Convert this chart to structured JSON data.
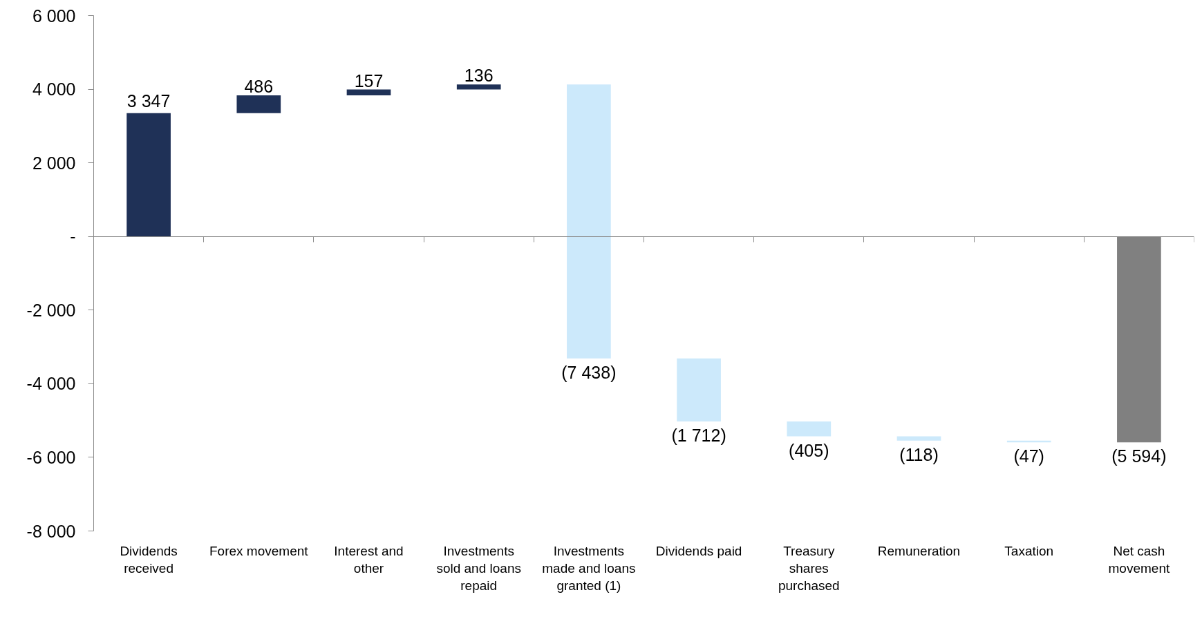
{
  "chart_data": {
    "type": "bar",
    "categories": [
      "Dividends received",
      "Forex movement",
      "Interest and other",
      "Investments sold and loans repaid",
      "Investments made and loans granted (1)",
      "Dividends paid",
      "Treasury shares purchased",
      "Remuneration",
      "Taxation",
      "Net cash movement"
    ],
    "values": [
      3347,
      486,
      157,
      136,
      -7438,
      -1712,
      -405,
      -118,
      -47,
      -5594
    ],
    "base": [
      0,
      3347,
      3833,
      3990,
      4126,
      -3312,
      -5024,
      -5429,
      -5547,
      0
    ],
    "colors": [
      "#1f3157",
      "#1f3157",
      "#1f3157",
      "#1f3157",
      "#cce9fb",
      "#cce9fb",
      "#cce9fb",
      "#cce9fb",
      "#cce9fb",
      "#808080"
    ],
    "value_labels": [
      "3 347",
      "486",
      "157",
      "136",
      "(7 438)",
      "(1 712)",
      "(405)",
      "(118)",
      "(47)",
      "(5 594)"
    ],
    "ylim": [
      -8000,
      6000
    ],
    "yticks": [
      {
        "value": -8000,
        "label": "-8 000"
      },
      {
        "value": -6000,
        "label": "-6 000"
      },
      {
        "value": -4000,
        "label": "-4 000"
      },
      {
        "value": -2000,
        "label": "-2 000"
      },
      {
        "value": 0,
        "label": "-"
      },
      {
        "value": 2000,
        "label": "2 000"
      },
      {
        "value": 4000,
        "label": "4 000"
      },
      {
        "value": 6000,
        "label": "6 000"
      }
    ]
  }
}
